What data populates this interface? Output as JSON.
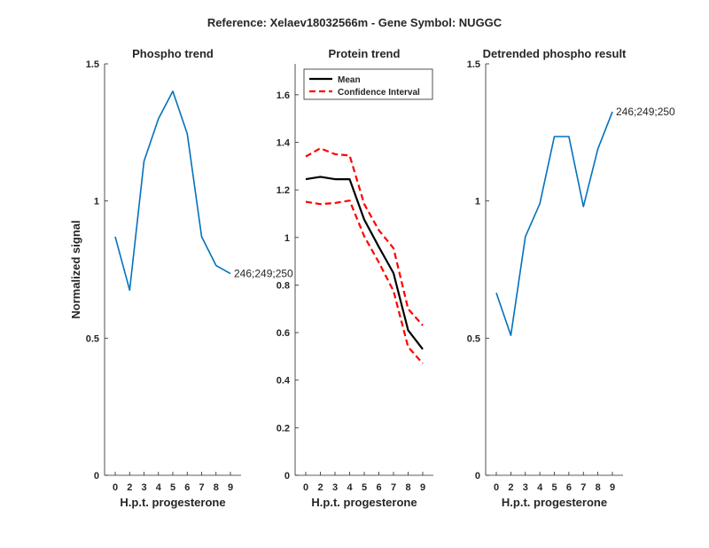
{
  "suptitle": "Reference:  Xelaev18032566m - Gene Symbol:  NUGGC",
  "chart_data": [
    {
      "type": "line",
      "title": "Phospho trend",
      "xlabel": "H.p.t. progesterone",
      "ylabel": "Normalized signal",
      "categories": [
        "0",
        "2",
        "3",
        "4",
        "5",
        "6",
        "7",
        "8",
        "9"
      ],
      "ylim": [
        0,
        1.5
      ],
      "yticks": [
        0,
        0.5,
        1,
        1.5
      ],
      "yticklabels": [
        "0",
        "0.5",
        "1",
        "1.5"
      ],
      "series": [
        {
          "name": "246;249;250",
          "color": "#0072BD",
          "values": [
            0.87,
            0.675,
            1.145,
            1.3,
            1.4,
            1.245,
            0.87,
            0.765,
            0.735
          ]
        }
      ],
      "annotation": "246;249;250"
    },
    {
      "type": "line",
      "title": "Protein trend",
      "xlabel": "H.p.t. progesterone",
      "ylabel": "",
      "categories": [
        "0",
        "2",
        "3",
        "4",
        "5",
        "6",
        "7",
        "8",
        "9"
      ],
      "ylim": [
        0,
        1.73
      ],
      "yticks": [
        0,
        0.2,
        0.4,
        0.6,
        0.8,
        1,
        1.2,
        1.4,
        1.6
      ],
      "yticklabels": [
        "0",
        "0.2",
        "0.4",
        "0.6",
        "0.8",
        "1",
        "1.2",
        "1.4",
        "1.6"
      ],
      "legend": [
        "Mean",
        "Confidence Interval"
      ],
      "legend_position": "top-left",
      "series": [
        {
          "name": "Mean",
          "color": "#000000",
          "values": [
            1.245,
            1.255,
            1.245,
            1.245,
            1.075,
            0.96,
            0.85,
            0.61,
            0.53
          ]
        },
        {
          "name": "Confidence Interval",
          "color": "#FF0000",
          "values": [
            1.34,
            1.375,
            1.35,
            1.345,
            1.14,
            1.03,
            0.955,
            0.7,
            0.63
          ]
        },
        {
          "name": "Confidence Interval",
          "color": "#FF0000",
          "values": [
            1.15,
            1.14,
            1.145,
            1.155,
            1.005,
            0.895,
            0.775,
            0.54,
            0.47
          ]
        }
      ]
    },
    {
      "type": "line",
      "title": "Detrended phospho result",
      "xlabel": "H.p.t. progesterone",
      "ylabel": "",
      "categories": [
        "0",
        "2",
        "3",
        "4",
        "5",
        "6",
        "7",
        "8",
        "9"
      ],
      "ylim": [
        0,
        1.5
      ],
      "yticks": [
        0,
        0.5,
        1,
        1.5
      ],
      "yticklabels": [
        "0",
        "0.5",
        "1",
        "1.5"
      ],
      "series": [
        {
          "name": "246;249;250",
          "color": "#0072BD",
          "values": [
            0.665,
            0.51,
            0.87,
            0.99,
            1.235,
            1.235,
            0.98,
            1.19,
            1.325
          ]
        }
      ],
      "annotation": "246;249;250"
    }
  ]
}
